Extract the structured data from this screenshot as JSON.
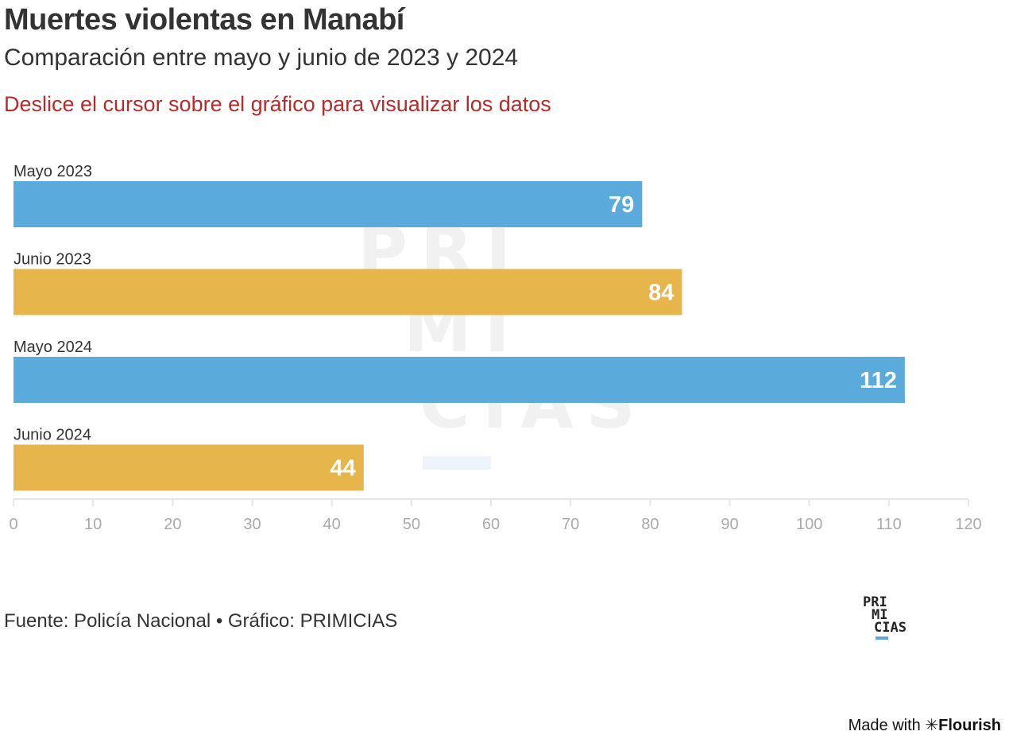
{
  "header": {
    "title": "Muertes violentas en Manabí",
    "subtitle": "Comparación entre mayo y junio de 2023 y 2024",
    "hint": "Deslice el cursor sobre el gráfico para visualizar los datos"
  },
  "watermark": {
    "lines": [
      "PRI",
      "MI",
      "CIAS"
    ]
  },
  "footer": {
    "source": "Fuente: Policía Nacional • Gráfico: PRIMICIAS",
    "logo_lines": [
      "PRI",
      "MI",
      "CIAS"
    ],
    "made_with_label": "Made with",
    "made_with_brand": "Flourish",
    "made_with_icon": "asterisk-icon"
  },
  "chart_data": {
    "type": "bar",
    "orientation": "horizontal",
    "categories": [
      "Mayo 2023",
      "Junio 2023",
      "Mayo 2024",
      "Junio 2024"
    ],
    "values": [
      79,
      84,
      112,
      44
    ],
    "colors": [
      "#5aaadc",
      "#e6b54c",
      "#5aaadc",
      "#e6b54c"
    ],
    "label_text_color": "#ffffff",
    "axis_text_color": "#aaaaaa",
    "xlim": [
      0,
      120
    ],
    "xticks": [
      0,
      10,
      20,
      30,
      40,
      50,
      60,
      70,
      80,
      90,
      100,
      110,
      120
    ],
    "grid": false,
    "data_labels": true,
    "title": "",
    "xlabel": "",
    "ylabel": ""
  }
}
